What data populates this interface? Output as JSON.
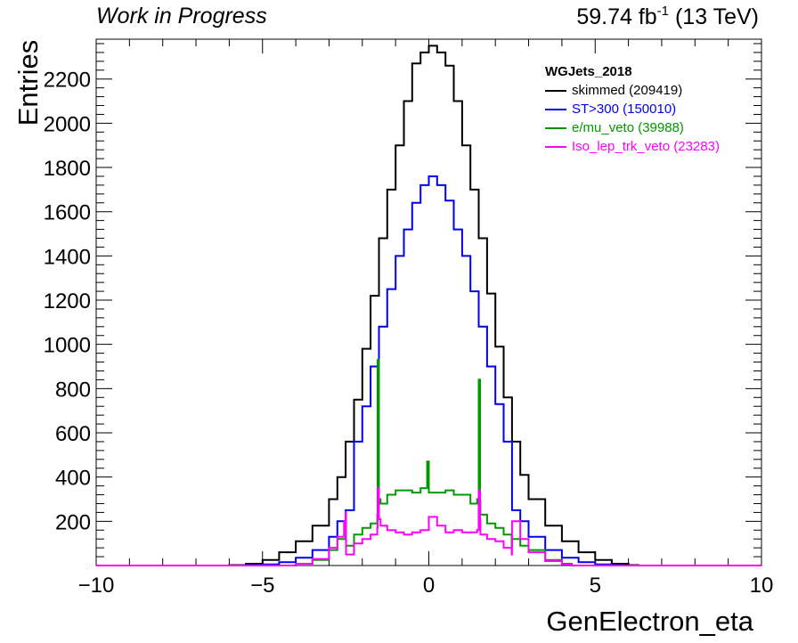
{
  "header": {
    "left": "Work in Progress",
    "lumi": "59.74 fb",
    "lumi_exp": "-1",
    "energy": " (13 TeV)"
  },
  "chart_data": {
    "type": "line",
    "xlabel": "GenElectron_eta",
    "ylabel": "Entries",
    "xlim": [
      -10,
      10
    ],
    "ylim": [
      0,
      2380
    ],
    "xticks": [
      -10,
      -5,
      0,
      5,
      10
    ],
    "yticks": [
      200,
      400,
      600,
      800,
      1000,
      1200,
      1400,
      1600,
      1800,
      2000,
      2200
    ],
    "grid": false,
    "legend_position": "top-right",
    "legend_title": "WGJets_2018",
    "series": [
      {
        "name": "skimmed (209419)",
        "color": "#000000",
        "x": [
          -6.0,
          -5.5,
          -5.0,
          -4.5,
          -4.0,
          -3.5,
          -3.0,
          -2.75,
          -2.5,
          -2.25,
          -2.0,
          -1.75,
          -1.5,
          -1.25,
          -1.0,
          -0.75,
          -0.5,
          -0.25,
          0.0,
          0.25,
          0.5,
          0.75,
          1.0,
          1.25,
          1.5,
          1.75,
          2.0,
          2.25,
          2.5,
          2.75,
          3.0,
          3.5,
          4.0,
          4.5,
          5.0,
          5.5,
          6.0
        ],
        "y": [
          2,
          8,
          25,
          60,
          110,
          180,
          300,
          400,
          560,
          750,
          980,
          1220,
          1480,
          1700,
          1900,
          2100,
          2270,
          2320,
          2350,
          2320,
          2260,
          2100,
          1900,
          1700,
          1480,
          1230,
          990,
          760,
          560,
          410,
          300,
          180,
          110,
          60,
          25,
          8,
          2
        ]
      },
      {
        "name": "ST>300 (150010)",
        "color": "#0000ee",
        "x": [
          -5.5,
          -5.0,
          -4.5,
          -4.0,
          -3.5,
          -3.0,
          -2.75,
          -2.5,
          -2.25,
          -2.0,
          -1.75,
          -1.5,
          -1.25,
          -1.0,
          -0.75,
          -0.5,
          -0.25,
          0.0,
          0.25,
          0.5,
          0.75,
          1.0,
          1.25,
          1.5,
          1.75,
          2.0,
          2.25,
          2.5,
          2.75,
          3.0,
          3.5,
          4.0,
          4.5,
          5.0,
          5.5
        ],
        "y": [
          2,
          5,
          15,
          35,
          70,
          130,
          200,
          250,
          560,
          720,
          900,
          1080,
          1250,
          1400,
          1520,
          1640,
          1720,
          1760,
          1720,
          1650,
          1520,
          1400,
          1240,
          1080,
          900,
          730,
          560,
          250,
          200,
          130,
          70,
          35,
          15,
          5,
          2
        ]
      },
      {
        "name": "e/mu_veto (39988)",
        "color": "#009900",
        "x": [
          -4.0,
          -3.5,
          -3.0,
          -2.75,
          -2.5,
          -2.49,
          -2.25,
          -2.0,
          -1.75,
          -1.55,
          -1.54,
          -1.5,
          -1.45,
          -1.25,
          -1.0,
          -0.75,
          -0.5,
          -0.25,
          -0.05,
          0.0,
          0.25,
          0.5,
          0.75,
          1.0,
          1.25,
          1.45,
          1.5,
          1.54,
          1.55,
          1.75,
          2.0,
          2.25,
          2.49,
          2.5,
          2.75,
          3.0,
          3.5,
          4.0
        ],
        "y": [
          8,
          25,
          70,
          120,
          200,
          90,
          140,
          170,
          190,
          230,
          930,
          300,
          280,
          320,
          340,
          340,
          330,
          350,
          470,
          330,
          330,
          340,
          320,
          320,
          280,
          300,
          840,
          290,
          230,
          190,
          170,
          140,
          90,
          120,
          90,
          70,
          25,
          8
        ]
      },
      {
        "name": "Iso_lep_trk_veto (23283)",
        "color": "#ff00ff",
        "x": [
          -4.0,
          -3.5,
          -3.0,
          -2.75,
          -2.55,
          -2.5,
          -2.49,
          -2.25,
          -2.0,
          -1.75,
          -1.55,
          -1.54,
          -1.5,
          -1.45,
          -1.25,
          -1.0,
          -0.75,
          -0.5,
          -0.25,
          0.0,
          0.25,
          0.5,
          0.75,
          1.0,
          1.25,
          1.45,
          1.5,
          1.54,
          1.55,
          1.75,
          2.0,
          2.25,
          2.49,
          2.5,
          2.55,
          2.75,
          3.0,
          3.5,
          4.0
        ],
        "y": [
          8,
          30,
          80,
          130,
          200,
          240,
          50,
          100,
          120,
          140,
          170,
          350,
          210,
          180,
          160,
          150,
          140,
          150,
          160,
          220,
          180,
          150,
          160,
          150,
          150,
          160,
          340,
          200,
          140,
          120,
          110,
          80,
          50,
          200,
          200,
          120,
          60,
          20,
          5
        ]
      }
    ]
  }
}
